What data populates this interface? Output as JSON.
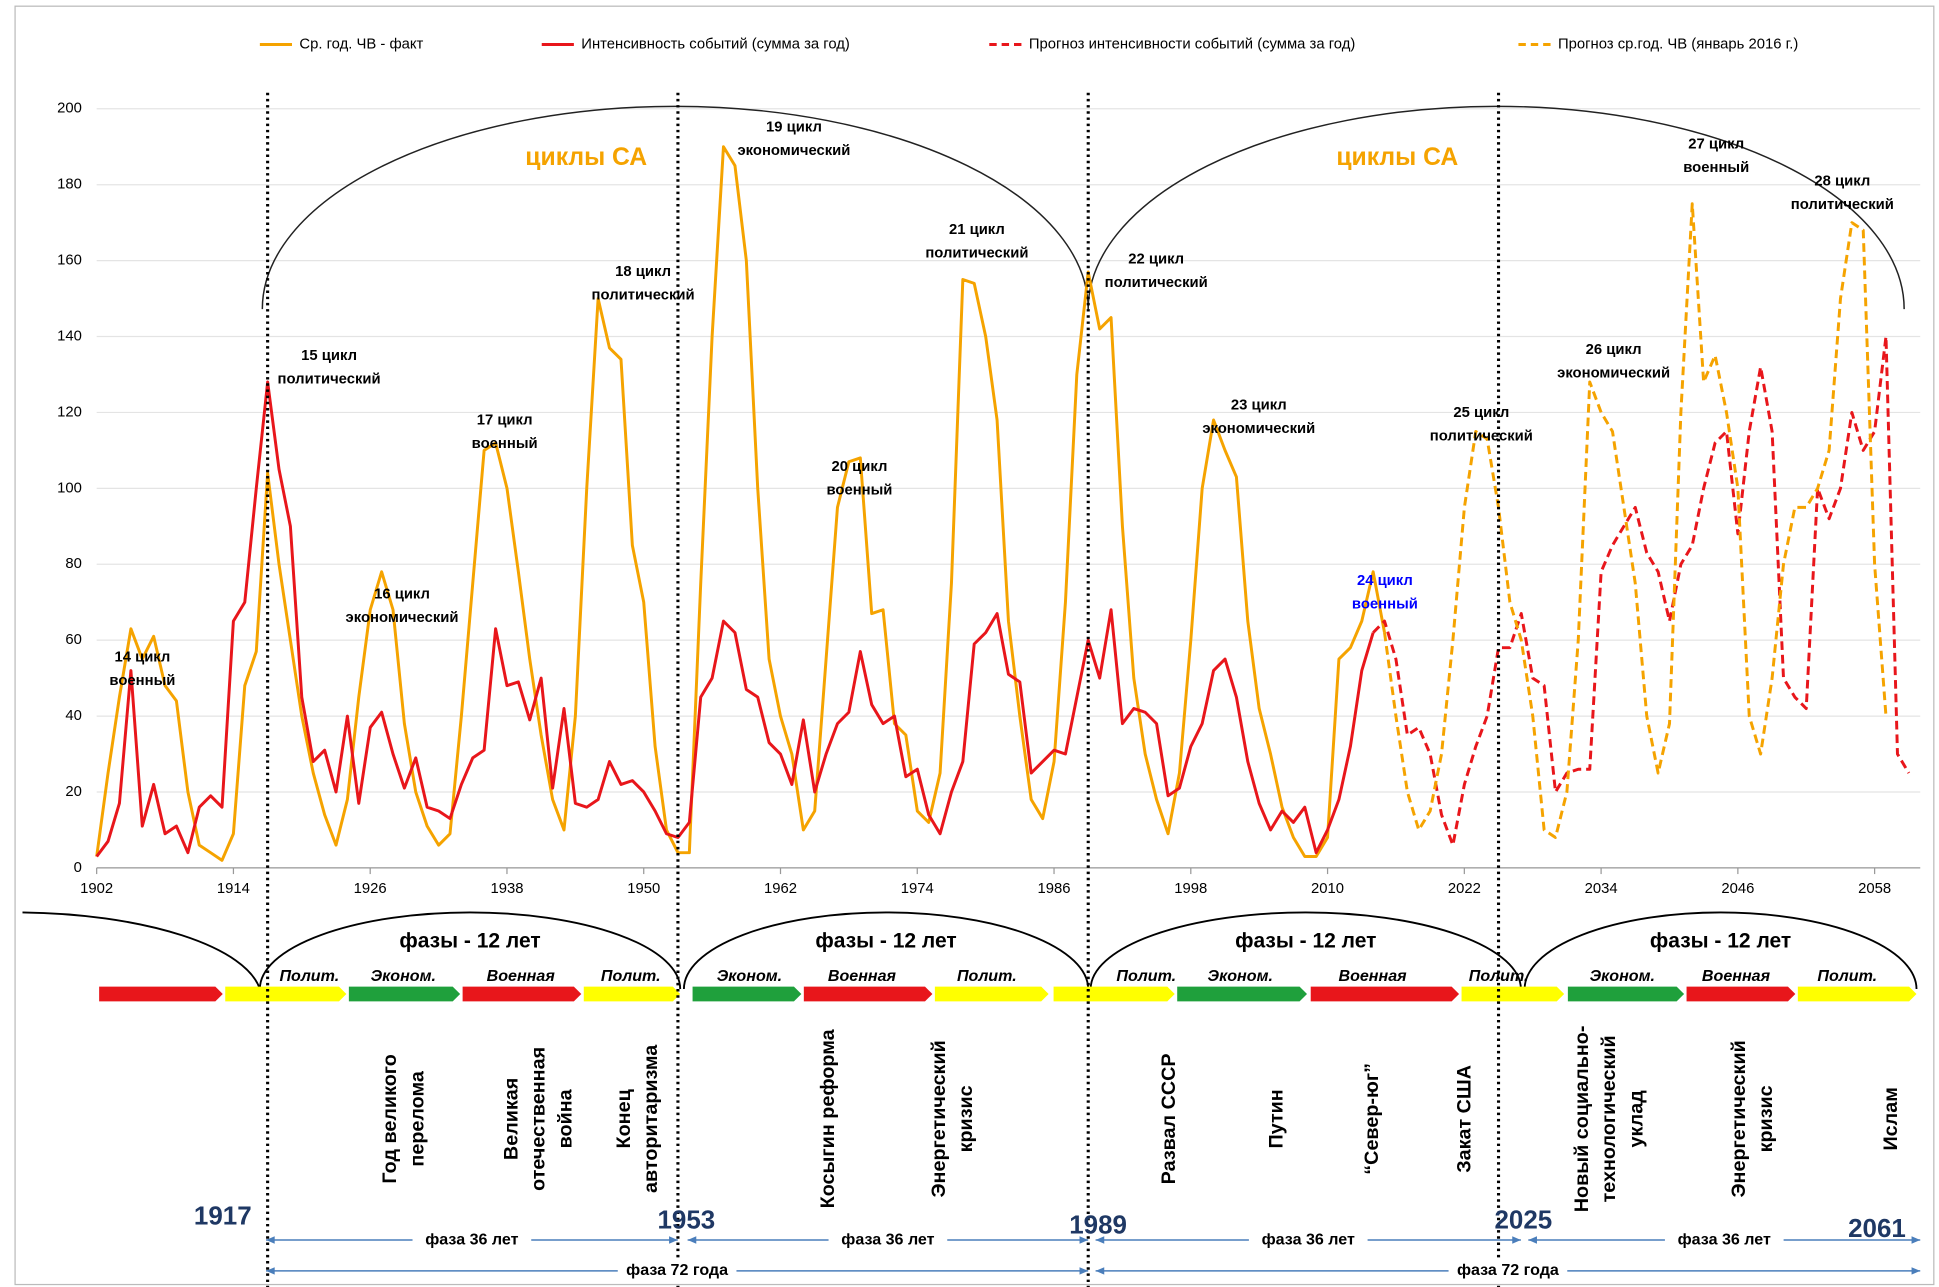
{
  "chart_data": {
    "type": "line",
    "legend": "top",
    "grid": true,
    "xlim": [
      1902,
      2062
    ],
    "xticks": [
      1902,
      1914,
      1926,
      1938,
      1950,
      1962,
      1974,
      1986,
      1998,
      2010,
      2022,
      2034,
      2046,
      2058
    ],
    "ylim": [
      0,
      200
    ],
    "yticks": [
      0,
      20,
      40,
      60,
      80,
      100,
      120,
      140,
      160,
      180,
      200
    ],
    "series": [
      {
        "name": "Ср. год. ЧВ - факт",
        "color": "#f5a300",
        "dashed": false,
        "x": [
          1902,
          1903,
          1904,
          1905,
          1906,
          1907,
          1908,
          1909,
          1910,
          1911,
          1912,
          1913,
          1914,
          1915,
          1916,
          1917,
          1918,
          1919,
          1920,
          1921,
          1922,
          1923,
          1924,
          1925,
          1926,
          1927,
          1928,
          1929,
          1930,
          1931,
          1932,
          1933,
          1934,
          1935,
          1936,
          1937,
          1938,
          1939,
          1940,
          1941,
          1942,
          1943,
          1944,
          1945,
          1946,
          1947,
          1948,
          1949,
          1950,
          1951,
          1952,
          1953,
          1954,
          1955,
          1956,
          1957,
          1958,
          1959,
          1960,
          1961,
          1962,
          1963,
          1964,
          1965,
          1966,
          1967,
          1968,
          1969,
          1970,
          1971,
          1972,
          1973,
          1974,
          1975,
          1976,
          1977,
          1978,
          1979,
          1980,
          1981,
          1982,
          1983,
          1984,
          1985,
          1986,
          1987,
          1988,
          1989,
          1990,
          1991,
          1992,
          1993,
          1994,
          1995,
          1996,
          1997,
          1998,
          1999,
          2000,
          2001,
          2002,
          2003,
          2004,
          2005,
          2006,
          2007,
          2008,
          2009,
          2010,
          2011,
          2012,
          2013,
          2014,
          2015
        ],
        "values": [
          3,
          25,
          45,
          63,
          55,
          61,
          48,
          44,
          20,
          6,
          4,
          2,
          9,
          48,
          57,
          104,
          80,
          60,
          40,
          25,
          14,
          6,
          18,
          45,
          68,
          78,
          68,
          38,
          20,
          11,
          6,
          9,
          40,
          75,
          110,
          112,
          100,
          78,
          55,
          35,
          18,
          10,
          40,
          100,
          150,
          137,
          134,
          85,
          70,
          32,
          10,
          4,
          4,
          75,
          140,
          190,
          185,
          160,
          100,
          55,
          40,
          30,
          10,
          15,
          55,
          95,
          107,
          108,
          67,
          68,
          38,
          35,
          15,
          12,
          25,
          75,
          155,
          154,
          140,
          118,
          65,
          40,
          18,
          13,
          28,
          70,
          130,
          157,
          142,
          145,
          90,
          50,
          30,
          18,
          9,
          25,
          60,
          100,
          118,
          110,
          103,
          65,
          42,
          30,
          16,
          8,
          3,
          3,
          8,
          55,
          58,
          65,
          78,
          62
        ]
      },
      {
        "name": "Интенсивность событий (сумма за год)",
        "color": "#e8161b",
        "dashed": false,
        "x": [
          1902,
          1903,
          1904,
          1905,
          1906,
          1907,
          1908,
          1909,
          1910,
          1911,
          1912,
          1913,
          1914,
          1915,
          1916,
          1917,
          1918,
          1919,
          1920,
          1921,
          1922,
          1923,
          1924,
          1925,
          1926,
          1927,
          1928,
          1929,
          1930,
          1931,
          1932,
          1933,
          1934,
          1935,
          1936,
          1937,
          1938,
          1939,
          1940,
          1941,
          1942,
          1943,
          1944,
          1945,
          1946,
          1947,
          1948,
          1949,
          1950,
          1951,
          1952,
          1953,
          1954,
          1955,
          1956,
          1957,
          1958,
          1959,
          1960,
          1961,
          1962,
          1963,
          1964,
          1965,
          1966,
          1967,
          1968,
          1969,
          1970,
          1971,
          1972,
          1973,
          1974,
          1975,
          1976,
          1977,
          1978,
          1979,
          1980,
          1981,
          1982,
          1983,
          1984,
          1985,
          1986,
          1987,
          1988,
          1989,
          1990,
          1991,
          1992,
          1993,
          1994,
          1995,
          1996,
          1997,
          1998,
          1999,
          2000,
          2001,
          2002,
          2003,
          2004,
          2005,
          2006,
          2007,
          2008,
          2009,
          2010,
          2011,
          2012,
          2013,
          2014
        ],
        "values": [
          3,
          7,
          17,
          52,
          11,
          22,
          9,
          11,
          4,
          16,
          19,
          16,
          65,
          70,
          100,
          128,
          105,
          90,
          45,
          28,
          31,
          20,
          40,
          17,
          37,
          41,
          30,
          21,
          29,
          16,
          15,
          13,
          22,
          29,
          31,
          63,
          48,
          49,
          39,
          50,
          21,
          42,
          17,
          16,
          18,
          28,
          22,
          23,
          20,
          15,
          9,
          8,
          12,
          45,
          50,
          65,
          62,
          47,
          45,
          33,
          30,
          22,
          39,
          20,
          30,
          38,
          41,
          57,
          43,
          38,
          40,
          24,
          26,
          14,
          9,
          20,
          28,
          59,
          62,
          67,
          51,
          49,
          25,
          28,
          31,
          30,
          45,
          60,
          50,
          68,
          38,
          42,
          41,
          38,
          19,
          21,
          32,
          38,
          52,
          55,
          45,
          28,
          17,
          10,
          15,
          12,
          16,
          4,
          10,
          18,
          32,
          52,
          62
        ]
      },
      {
        "name": "Прогноз интенсивности событий (сумма за год)",
        "color": "#e8161b",
        "dashed": true,
        "x": [
          2014,
          2015,
          2016,
          2017,
          2018,
          2019,
          2020,
          2021,
          2022,
          2023,
          2024,
          2025,
          2026,
          2027,
          2028,
          2029,
          2030,
          2031,
          2032,
          2033,
          2034,
          2035,
          2036,
          2037,
          2038,
          2039,
          2040,
          2041,
          2042,
          2043,
          2044,
          2045,
          2046,
          2047,
          2048,
          2049,
          2050,
          2051,
          2052,
          2053,
          2054,
          2055,
          2056,
          2057,
          2058,
          2059,
          2060,
          2061
        ],
        "values": [
          62,
          65,
          55,
          35,
          37,
          30,
          14,
          6,
          22,
          32,
          40,
          58,
          58,
          67,
          50,
          48,
          20,
          25,
          26,
          26,
          78,
          85,
          90,
          95,
          83,
          78,
          65,
          80,
          85,
          100,
          112,
          115,
          88,
          115,
          132,
          115,
          50,
          45,
          42,
          100,
          92,
          100,
          120,
          110,
          115,
          140,
          30,
          25
        ]
      },
      {
        "name": "Прогноз ср.год. ЧВ (январь 2016 г.)",
        "color": "#f5a300",
        "dashed": true,
        "x": [
          2015,
          2016,
          2017,
          2018,
          2019,
          2020,
          2021,
          2022,
          2023,
          2024,
          2025,
          2026,
          2027,
          2028,
          2029,
          2030,
          2031,
          2032,
          2033,
          2034,
          2035,
          2036,
          2037,
          2038,
          2039,
          2040,
          2041,
          2042,
          2043,
          2044,
          2045,
          2046,
          2047,
          2048,
          2049,
          2050,
          2051,
          2052,
          2053,
          2054,
          2055,
          2056,
          2057,
          2058,
          2059
        ],
        "values": [
          62,
          40,
          20,
          10,
          15,
          30,
          60,
          95,
          115,
          113,
          95,
          70,
          60,
          40,
          10,
          8,
          20,
          60,
          128,
          120,
          115,
          95,
          75,
          40,
          25,
          38,
          120,
          175,
          128,
          135,
          120,
          100,
          40,
          30,
          50,
          80,
          95,
          95,
          100,
          110,
          150,
          170,
          168,
          80,
          40
        ]
      }
    ],
    "cycle_labels": [
      "циклы СА",
      "циклы СА"
    ],
    "annotations": [
      {
        "lines": [
          "14 цикл",
          "военный"
        ]
      },
      {
        "lines": [
          "15 цикл",
          "политический"
        ]
      },
      {
        "lines": [
          "16 цикл",
          "экономический"
        ]
      },
      {
        "lines": [
          "17 цикл",
          "военный"
        ]
      },
      {
        "lines": [
          "18 цикл",
          "политический"
        ]
      },
      {
        "lines": [
          "19 цикл",
          "экономический"
        ]
      },
      {
        "lines": [
          "20 цикл",
          "военный"
        ]
      },
      {
        "lines": [
          "21 цикл",
          "политический"
        ]
      },
      {
        "lines": [
          "22 цикл",
          "политический"
        ]
      },
      {
        "lines": [
          "23 цикл",
          "экономический"
        ]
      },
      {
        "lines": [
          "24 цикл",
          "военный"
        ],
        "color": "#0000ff"
      },
      {
        "lines": [
          "25 цикл",
          "политический"
        ]
      },
      {
        "lines": [
          "26 цикл",
          "экономический"
        ]
      },
      {
        "lines": [
          "27 цикл",
          "военный"
        ]
      },
      {
        "lines": [
          "28 цикл",
          "политический"
        ]
      }
    ]
  },
  "phase_scheme": {
    "arc_labels": [
      "фазы - 12 лет",
      "фазы - 12 лет",
      "фазы - 12 лет",
      "фазы - 12 лет"
    ],
    "phases": [
      {
        "label": "Полит.",
        "color": "#ffff00"
      },
      {
        "label": "Эконом.",
        "color": "#1fa03c"
      },
      {
        "label": "Военная",
        "color": "#e8161b"
      },
      {
        "label": "Полит.",
        "color": "#ffff00"
      },
      {
        "label": "Эконом.",
        "color": "#1fa03c"
      },
      {
        "label": "Военная",
        "color": "#e8161b"
      },
      {
        "label": "Полит.",
        "color": "#ffff00"
      },
      {
        "label": "Полит.",
        "color": "#ffff00"
      },
      {
        "label": "Эконом.",
        "color": "#1fa03c"
      },
      {
        "label": "Военная",
        "color": "#e8161b"
      },
      {
        "label": "Полит.",
        "color": "#ffff00"
      },
      {
        "label": "Эконом.",
        "color": "#1fa03c"
      },
      {
        "label": "Военная",
        "color": "#e8161b"
      },
      {
        "label": "Полит.",
        "color": "#ffff00"
      }
    ],
    "events": [
      {
        "lines": [
          "Год великого",
          "перелома"
        ]
      },
      {
        "lines": [
          "Великая",
          "отечественная",
          "война"
        ]
      },
      {
        "lines": [
          "Конец",
          "авторитаризма"
        ]
      },
      {
        "lines": [
          "Косыгин реформа"
        ]
      },
      {
        "lines": [
          "Энергетический",
          "кризис"
        ]
      },
      {
        "lines": [
          "Развал СССР"
        ]
      },
      {
        "lines": [
          "Путин"
        ]
      },
      {
        "lines": [
          "“Север-юг”"
        ]
      },
      {
        "lines": [
          "Закат США"
        ]
      },
      {
        "lines": [
          "Новый социально-",
          "технологический",
          "уклад"
        ]
      },
      {
        "lines": [
          "Энергетический",
          "кризис"
        ]
      },
      {
        "lines": [
          "Ислам"
        ]
      }
    ],
    "years": [
      1917,
      1953,
      1989,
      2025,
      2061
    ],
    "phase_36": [
      "фаза 36 лет",
      "фаза 36 лет",
      "фаза 36 лет",
      "фаза 36 лет"
    ],
    "phase_72": [
      "фаза 72 года",
      "фаза 72 года"
    ]
  }
}
